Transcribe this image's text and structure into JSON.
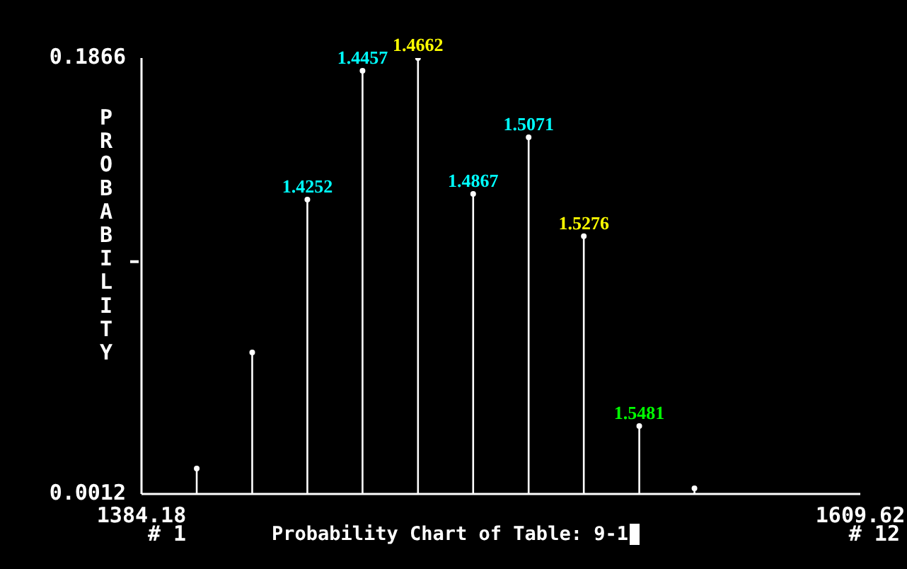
{
  "chart_data": {
    "type": "lollipop",
    "title": "Probability Chart of Table: 9-1",
    "ylabel": "PROBABILITY",
    "x": [
      1401.5,
      1418.9,
      1436.2,
      1453.5,
      1470.9,
      1488.2,
      1505.6,
      1522.9,
      1540.3,
      1557.6
    ],
    "series": [
      {
        "color": "#ffffff",
        "values": [
          0.012,
          0.0614,
          0.1264,
          0.1812,
          0.1866,
          0.1288,
          0.1529,
          0.1108,
          0.0301,
          0.0036
        ]
      }
    ],
    "xlim": [
      1384.18,
      1609.62
    ],
    "xticks": [
      1384.18,
      1609.62
    ],
    "ylim": [
      0.0012,
      0.1866
    ],
    "yticks": [
      0.0012,
      {
        "value": 0.1,
        "label": null
      },
      0.1866
    ],
    "grid": false,
    "legend": false,
    "annotations": [
      "# 1",
      "# 12",
      {
        "text": "1.4252",
        "x": 1436.2,
        "y": 0.1264
      },
      {
        "text": "1.4457",
        "x": 1453.5,
        "y": 0.1812
      },
      {
        "text": "1.4662",
        "x": 1470.9,
        "y": 0.1866
      },
      {
        "text": "1.4867",
        "x": 1488.2,
        "y": 0.1288
      },
      {
        "text": "1.5071",
        "x": 1505.6,
        "y": 0.1529
      },
      {
        "text": "1.5276",
        "x": 1522.9,
        "y": 0.1108
      },
      {
        "text": "1.5481",
        "x": 1540.3,
        "y": 0.0301
      }
    ]
  }
}
